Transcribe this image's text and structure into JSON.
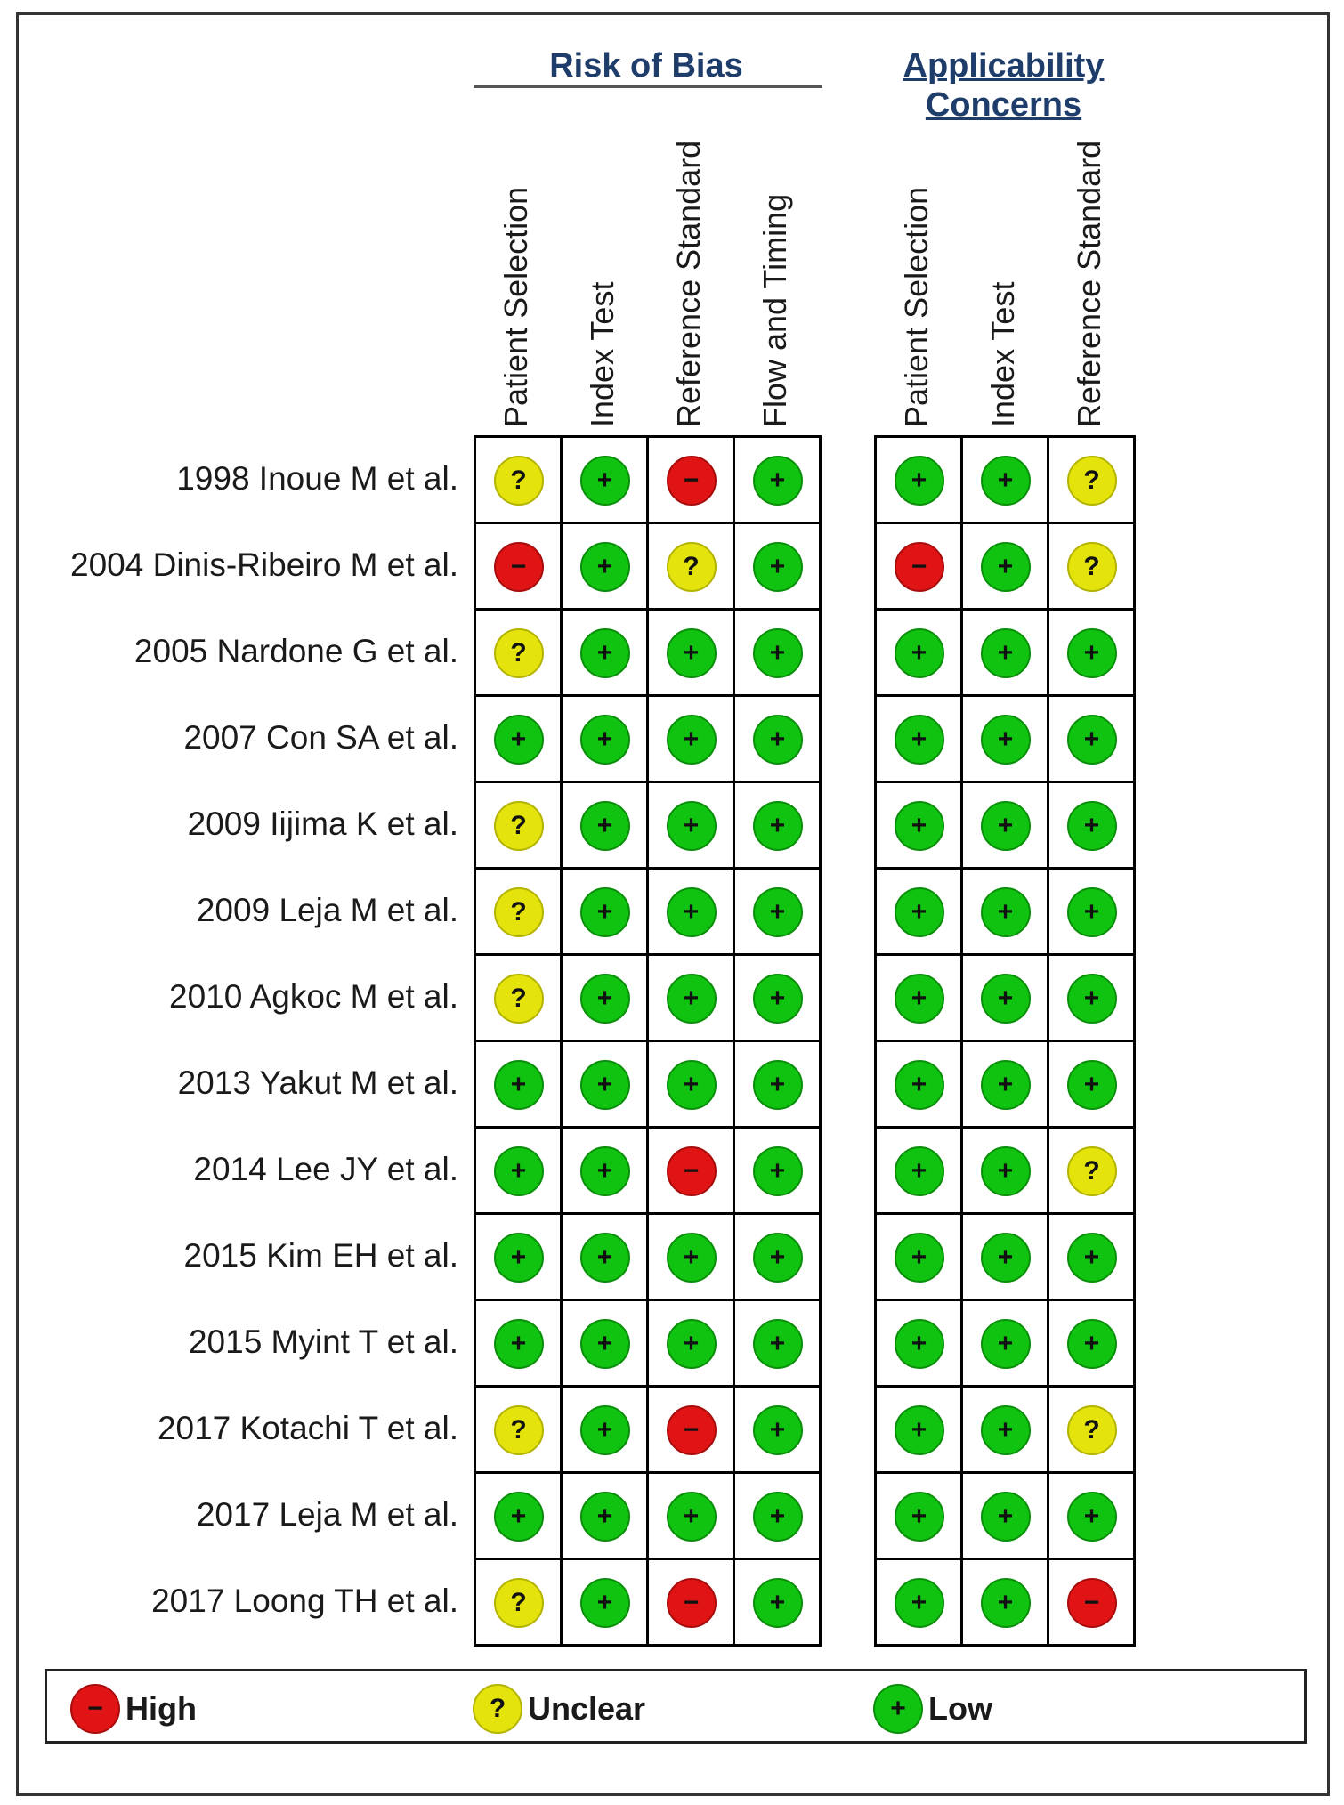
{
  "groups": [
    {
      "title": "Risk of Bias",
      "columns": [
        "Patient Selection",
        "Index Test",
        "Reference Standard",
        "Flow and Timing"
      ]
    },
    {
      "title": "Applicability Concerns",
      "columns": [
        "Patient Selection",
        "Index Test",
        "Reference Standard"
      ]
    }
  ],
  "studies": [
    {
      "label": "1998 Inoue M et al.",
      "risk": [
        "unclear",
        "low",
        "high",
        "low"
      ],
      "applicability": [
        "low",
        "low",
        "unclear"
      ]
    },
    {
      "label": "2004 Dinis-Ribeiro M et al.",
      "risk": [
        "high",
        "low",
        "unclear",
        "low"
      ],
      "applicability": [
        "high",
        "low",
        "unclear"
      ]
    },
    {
      "label": "2005 Nardone G et al.",
      "risk": [
        "unclear",
        "low",
        "low",
        "low"
      ],
      "applicability": [
        "low",
        "low",
        "low"
      ]
    },
    {
      "label": "2007 Con SA et al.",
      "risk": [
        "low",
        "low",
        "low",
        "low"
      ],
      "applicability": [
        "low",
        "low",
        "low"
      ]
    },
    {
      "label": "2009 Iijima K et al.",
      "risk": [
        "unclear",
        "low",
        "low",
        "low"
      ],
      "applicability": [
        "low",
        "low",
        "low"
      ]
    },
    {
      "label": "2009 Leja M et al.",
      "risk": [
        "unclear",
        "low",
        "low",
        "low"
      ],
      "applicability": [
        "low",
        "low",
        "low"
      ]
    },
    {
      "label": "2010 Agkoc M et al.",
      "risk": [
        "unclear",
        "low",
        "low",
        "low"
      ],
      "applicability": [
        "low",
        "low",
        "low"
      ]
    },
    {
      "label": "2013 Yakut M et al.",
      "risk": [
        "low",
        "low",
        "low",
        "low"
      ],
      "applicability": [
        "low",
        "low",
        "low"
      ]
    },
    {
      "label": "2014 Lee JY et al.",
      "risk": [
        "low",
        "low",
        "high",
        "low"
      ],
      "applicability": [
        "low",
        "low",
        "unclear"
      ]
    },
    {
      "label": "2015 Kim EH et al.",
      "risk": [
        "low",
        "low",
        "low",
        "low"
      ],
      "applicability": [
        "low",
        "low",
        "low"
      ]
    },
    {
      "label": "2015 Myint T et al.",
      "risk": [
        "low",
        "low",
        "low",
        "low"
      ],
      "applicability": [
        "low",
        "low",
        "low"
      ]
    },
    {
      "label": "2017 Kotachi T et al.",
      "risk": [
        "unclear",
        "low",
        "high",
        "low"
      ],
      "applicability": [
        "low",
        "low",
        "unclear"
      ]
    },
    {
      "label": "2017 Leja M et al.",
      "risk": [
        "low",
        "low",
        "low",
        "low"
      ],
      "applicability": [
        "low",
        "low",
        "low"
      ]
    },
    {
      "label": "2017 Loong TH et al.",
      "risk": [
        "unclear",
        "low",
        "high",
        "low"
      ],
      "applicability": [
        "low",
        "low",
        "high"
      ]
    }
  ],
  "symbols": {
    "high": "−",
    "unclear": "?",
    "low": "+"
  },
  "legend": [
    {
      "key": "high",
      "label": "High"
    },
    {
      "key": "unclear",
      "label": "Unclear"
    },
    {
      "key": "low",
      "label": "Low"
    }
  ],
  "colors": {
    "high": "#e01414",
    "unclear": "#e4e40c",
    "low": "#11c311",
    "group_title": "#1f3d6b"
  }
}
